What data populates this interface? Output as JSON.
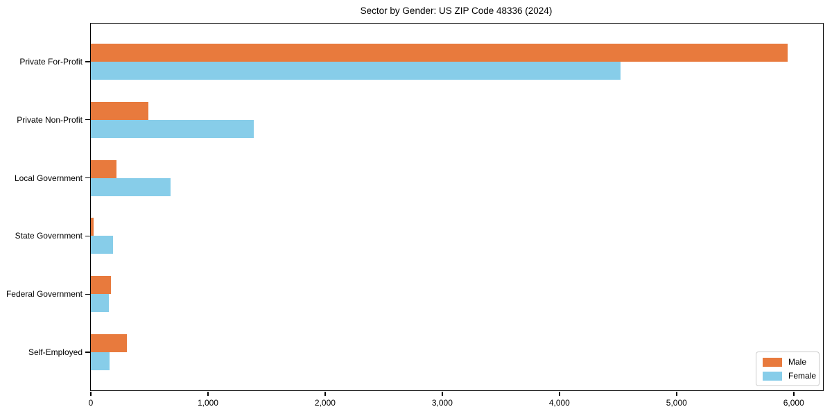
{
  "title": "Sector by Gender: US ZIP Code 48336 (2024)",
  "colors": {
    "male": "#e87a3d",
    "female": "#87cde9",
    "axis": "#000000",
    "legend_border": "#cccccc",
    "background": "#ffffff"
  },
  "legend": {
    "entries": [
      {
        "label": "Male",
        "color": "#e87a3d"
      },
      {
        "label": "Female",
        "color": "#87cde9"
      }
    ],
    "position": "lower right"
  },
  "chart_data": {
    "type": "bar",
    "orientation": "horizontal",
    "title": "Sector by Gender: US ZIP Code 48336 (2024)",
    "xlabel": "",
    "ylabel": "",
    "categories": [
      "Private For-Profit",
      "Private Non-Profit",
      "Local Government",
      "State Government",
      "Federal Government",
      "Self-Employed"
    ],
    "series": [
      {
        "name": "Male",
        "color": "#e87a3d",
        "values": [
          5950,
          490,
          220,
          25,
          170,
          310
        ]
      },
      {
        "name": "Female",
        "color": "#87cde9",
        "values": [
          4520,
          1390,
          680,
          190,
          155,
          160
        ]
      }
    ],
    "xlim": [
      0,
      6250
    ],
    "xticks": [
      0,
      1000,
      2000,
      3000,
      4000,
      5000,
      6000
    ],
    "xtick_labels": [
      "0",
      "1,000",
      "2,000",
      "3,000",
      "4,000",
      "5,000",
      "6,000"
    ],
    "grid": false,
    "legend_position": "lower right"
  }
}
